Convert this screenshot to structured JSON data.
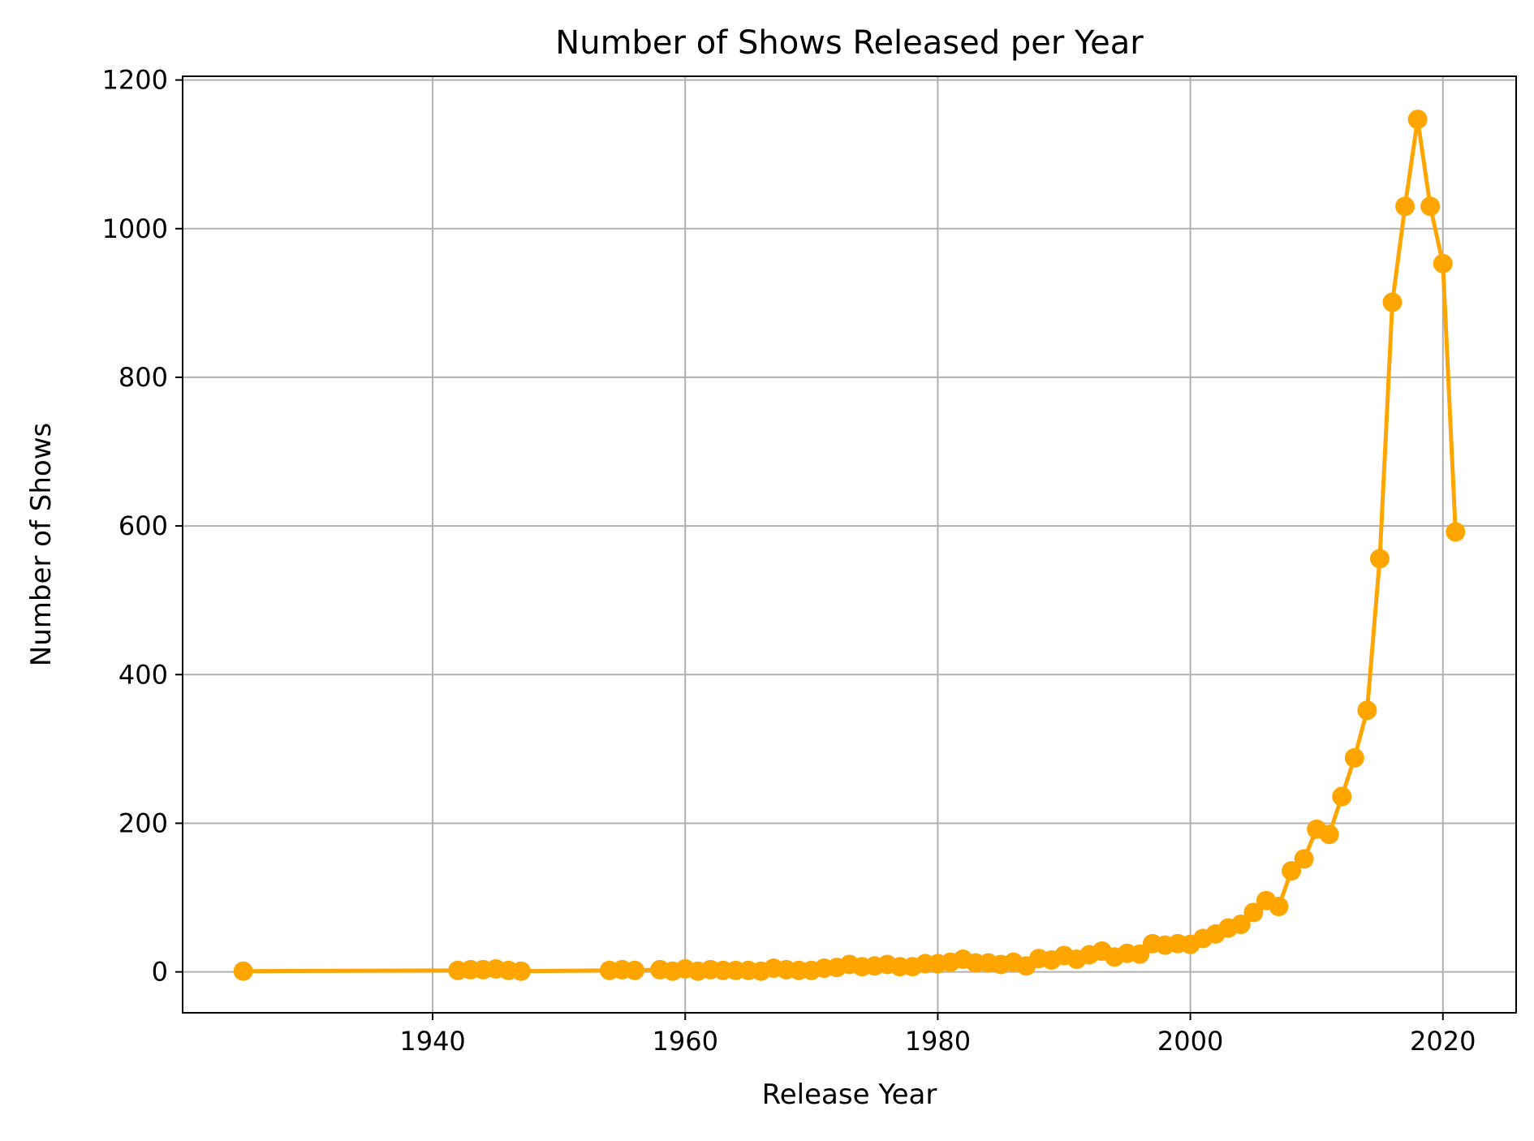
{
  "chart_data": {
    "type": "line",
    "title": "Number of Shows Released per Year",
    "xlabel": "Release Year",
    "ylabel": "Number of Shows",
    "xlim": [
      1920.2,
      2025.8
    ],
    "ylim": [
      -55,
      1205
    ],
    "x_ticks": [
      1940,
      1960,
      1980,
      2000,
      2020
    ],
    "y_ticks": [
      0,
      200,
      400,
      600,
      800,
      1000,
      1200
    ],
    "grid": true,
    "marker": "circle",
    "color": "#FFA500",
    "series": [
      {
        "x": [
          1925,
          1942,
          1943,
          1944,
          1945,
          1946,
          1947,
          1954,
          1955,
          1956,
          1958,
          1959,
          1960,
          1961,
          1962,
          1963,
          1964,
          1965,
          1966,
          1967,
          1968,
          1969,
          1970,
          1971,
          1972,
          1973,
          1974,
          1975,
          1976,
          1977,
          1978,
          1979,
          1980,
          1981,
          1982,
          1983,
          1984,
          1985,
          1986,
          1987,
          1988,
          1989,
          1990,
          1991,
          1992,
          1993,
          1994,
          1995,
          1996,
          1997,
          1998,
          1999,
          2000,
          2001,
          2002,
          2003,
          2004,
          2005,
          2006,
          2007,
          2008,
          2009,
          2010,
          2011,
          2012,
          2013,
          2014,
          2015,
          2016,
          2017,
          2018,
          2019,
          2020,
          2021
        ],
        "y": [
          1,
          2,
          3,
          3,
          4,
          2,
          1,
          2,
          3,
          2,
          3,
          1,
          4,
          1,
          3,
          2,
          2,
          2,
          1,
          5,
          3,
          2,
          2,
          5,
          6,
          10,
          7,
          8,
          10,
          7,
          7,
          11,
          11,
          13,
          17,
          12,
          12,
          10,
          13,
          8,
          18,
          16,
          22,
          17,
          23,
          28,
          20,
          25,
          24,
          38,
          36,
          38,
          37,
          45,
          51,
          59,
          64,
          80,
          96,
          88,
          136,
          152,
          192,
          185,
          236,
          288,
          352,
          556,
          901,
          1030,
          1147,
          1030,
          953,
          592
        ]
      }
    ]
  }
}
